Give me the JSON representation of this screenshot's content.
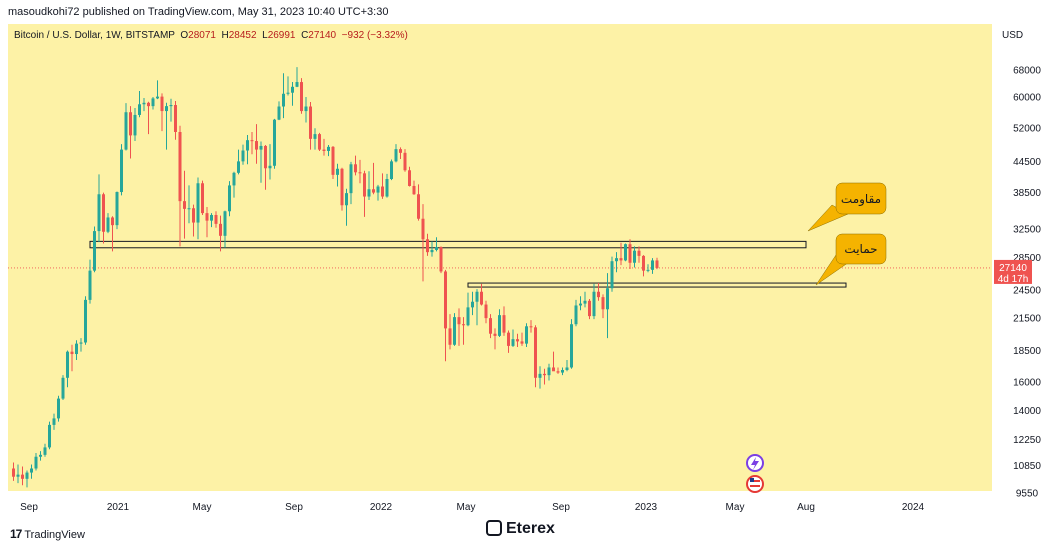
{
  "publish_line": "masoudkohi72 published on TradingView.com, May 31, 2023 10:40 UTC+3:30",
  "symbol": {
    "name": "Bitcoin / U.S. Dollar, 1W, BITSTAMP",
    "open_label": "O",
    "open": "28071",
    "high_label": "H",
    "high": "28452",
    "low_label": "L",
    "low": "26991",
    "close_label": "C",
    "close": "27140",
    "change": "−932 (−3.32%)"
  },
  "currency": "USD",
  "price_tag": {
    "value": "27140",
    "countdown": "4d 17h"
  },
  "annotations": {
    "resistance": "مقاومت",
    "support": "حمایت"
  },
  "footer": {
    "tradingview": "TradingView",
    "brand": "Eterex"
  },
  "colors": {
    "up": "#26a69a",
    "down": "#ef5350",
    "background": "#fdf2a6",
    "accent": "#f5b300"
  },
  "icons": [
    "tradingview-logo-icon",
    "eterex-logo-icon",
    "lightning-event-icon",
    "us-flag-event-icon"
  ],
  "chart_data": {
    "type": "candlestick",
    "timeframe": "1W",
    "scale": "log",
    "title": "Bitcoin / U.S. Dollar, 1W, BITSTAMP",
    "y_ticks": [
      68000,
      60000,
      52000,
      44500,
      38500,
      32500,
      28500,
      24500,
      21500,
      18500,
      16000,
      14000,
      12250,
      10850,
      9550
    ],
    "x_ticks": [
      "Sep",
      "2021",
      "May",
      "Sep",
      "2022",
      "May",
      "Sep",
      "2023",
      "May",
      "Aug",
      "2024"
    ],
    "ylim": [
      9550,
      80000
    ],
    "zones": [
      {
        "label": "مقاومت",
        "low": 29800,
        "high": 30700
      },
      {
        "label": "حمایت",
        "low": 24900,
        "high": 25300
      }
    ],
    "last_close": 27140,
    "series": [
      {
        "values": [
          [
            10700,
            11000,
            10100,
            10300
          ],
          [
            10300,
            10900,
            10000,
            10400
          ],
          [
            10400,
            10800,
            9900,
            10200
          ],
          [
            10200,
            10600,
            9800,
            10500
          ],
          [
            10500,
            10900,
            10200,
            10700
          ],
          [
            10700,
            11500,
            10600,
            11300
          ],
          [
            11300,
            11600,
            11100,
            11400
          ],
          [
            11400,
            12000,
            11300,
            11800
          ],
          [
            11800,
            13300,
            11700,
            13100
          ],
          [
            13100,
            13800,
            12800,
            13500
          ],
          [
            13500,
            15000,
            13300,
            14800
          ],
          [
            14800,
            16500,
            14700,
            16300
          ],
          [
            16300,
            18500,
            15600,
            18400
          ],
          [
            18400,
            19000,
            16800,
            18200
          ],
          [
            18200,
            19400,
            17700,
            19100
          ],
          [
            19100,
            19600,
            18400,
            19200
          ],
          [
            19200,
            23800,
            19000,
            23400
          ],
          [
            23400,
            28200,
            23000,
            26800
          ],
          [
            26800,
            32900,
            26600,
            32200
          ],
          [
            32200,
            41900,
            30600,
            38200
          ],
          [
            38200,
            38500,
            30400,
            32100
          ],
          [
            32100,
            35000,
            31900,
            34300
          ],
          [
            34300,
            34500,
            29300,
            33100
          ],
          [
            33100,
            38700,
            32500,
            38600
          ],
          [
            38600,
            48200,
            38000,
            47000
          ],
          [
            47000,
            58300,
            46800,
            55900
          ],
          [
            55900,
            57500,
            45100,
            50200
          ],
          [
            50200,
            57000,
            48900,
            55200
          ],
          [
            55200,
            61700,
            54600,
            58000
          ],
          [
            58000,
            59700,
            56200,
            58400
          ],
          [
            58400,
            58700,
            50500,
            57500
          ],
          [
            57500,
            60000,
            56600,
            59600
          ],
          [
            59600,
            64800,
            59400,
            60100
          ],
          [
            60100,
            61000,
            51200,
            56200
          ],
          [
            56200,
            58400,
            47000,
            57500
          ],
          [
            57500,
            59500,
            53500,
            57800
          ],
          [
            57800,
            58900,
            49200,
            51000
          ],
          [
            51000,
            52500,
            30000,
            37000
          ],
          [
            37000,
            42600,
            31100,
            35700
          ],
          [
            35700,
            39800,
            33400,
            35800
          ],
          [
            35800,
            36400,
            31400,
            33500
          ],
          [
            33500,
            41300,
            31000,
            40200
          ],
          [
            40200,
            40700,
            34700,
            35000
          ],
          [
            35000,
            36000,
            31300,
            33800
          ],
          [
            33800,
            35000,
            32800,
            34700
          ],
          [
            34700,
            35300,
            32700,
            33300
          ],
          [
            33300,
            34600,
            29300,
            31500
          ],
          [
            31500,
            35400,
            29800,
            35300
          ],
          [
            35300,
            40600,
            34500,
            39800
          ],
          [
            39800,
            42400,
            37600,
            42200
          ],
          [
            42200,
            47000,
            41900,
            44500
          ],
          [
            44500,
            48100,
            43800,
            46800
          ],
          [
            46800,
            50300,
            43900,
            49100
          ],
          [
            49100,
            51000,
            46000,
            48900
          ],
          [
            48900,
            52900,
            44000,
            47000
          ],
          [
            47000,
            48800,
            40300,
            47800
          ],
          [
            47800,
            48000,
            39000,
            43100
          ],
          [
            43100,
            48200,
            40900,
            43600
          ],
          [
            43600,
            54200,
            43000,
            54000
          ],
          [
            54000,
            58800,
            53900,
            57400
          ],
          [
            57400,
            67000,
            54400,
            60900
          ],
          [
            60900,
            66000,
            60400,
            61200
          ],
          [
            61200,
            64300,
            57600,
            62900
          ],
          [
            62900,
            68900,
            62800,
            64300
          ],
          [
            64300,
            65500,
            55500,
            56200
          ],
          [
            56200,
            60000,
            53300,
            57400
          ],
          [
            57400,
            58600,
            47000,
            49400
          ],
          [
            49400,
            51900,
            47000,
            50500
          ],
          [
            50500,
            50800,
            46700,
            47000
          ],
          [
            47000,
            49400,
            45700,
            46700
          ],
          [
            46700,
            48000,
            45600,
            47600
          ],
          [
            47600,
            47800,
            41000,
            41800
          ],
          [
            41800,
            44000,
            39600,
            43000
          ],
          [
            43000,
            43200,
            35400,
            36300
          ],
          [
            36300,
            39200,
            33000,
            38400
          ],
          [
            38400,
            44400,
            36500,
            43900
          ],
          [
            43900,
            45700,
            41700,
            42300
          ],
          [
            42300,
            44800,
            40200,
            42100
          ],
          [
            42100,
            42600,
            34400,
            37800
          ],
          [
            37800,
            42500,
            37200,
            39100
          ],
          [
            39100,
            44200,
            38200,
            38500
          ],
          [
            38500,
            39900,
            37100,
            39600
          ],
          [
            39600,
            42100,
            37400,
            37800
          ],
          [
            37800,
            42000,
            37600,
            41000
          ],
          [
            41000,
            44900,
            40800,
            44500
          ],
          [
            44500,
            48200,
            44300,
            47100
          ],
          [
            47100,
            47500,
            45000,
            46300
          ],
          [
            46300,
            47100,
            42400,
            42700
          ],
          [
            42700,
            43400,
            39600,
            39700
          ],
          [
            39700,
            40700,
            38100,
            38200
          ],
          [
            38200,
            40000,
            33800,
            34100
          ],
          [
            34100,
            36500,
            25500,
            31000
          ],
          [
            31000,
            31800,
            28700,
            29200
          ],
          [
            29200,
            30700,
            28600,
            29500
          ],
          [
            29500,
            31300,
            29300,
            29900
          ],
          [
            29900,
            30000,
            26500,
            26700
          ],
          [
            26700,
            26900,
            17600,
            20500
          ],
          [
            20500,
            21900,
            18600,
            19000
          ],
          [
            19000,
            22000,
            18900,
            21600
          ],
          [
            21600,
            22500,
            18900,
            20900
          ],
          [
            20900,
            21600,
            19000,
            20800
          ],
          [
            20800,
            24200,
            20700,
            22600
          ],
          [
            22600,
            24300,
            21800,
            23200
          ],
          [
            23200,
            24600,
            20800,
            24300
          ],
          [
            24300,
            25200,
            22800,
            22900
          ],
          [
            22900,
            23300,
            21000,
            21500
          ],
          [
            21500,
            21900,
            19600,
            20000
          ],
          [
            20000,
            20500,
            18600,
            19800
          ],
          [
            19800,
            22400,
            19700,
            21800
          ],
          [
            21800,
            22700,
            19800,
            20100
          ],
          [
            20100,
            20300,
            18300,
            18900
          ],
          [
            18900,
            20400,
            18800,
            19500
          ],
          [
            19500,
            20000,
            18800,
            19300
          ],
          [
            19300,
            20100,
            18900,
            19100
          ],
          [
            19100,
            21000,
            18800,
            20700
          ],
          [
            20700,
            21300,
            20100,
            20600
          ],
          [
            20600,
            20800,
            15600,
            16300
          ],
          [
            16300,
            17200,
            15500,
            16600
          ],
          [
            16600,
            17000,
            15800,
            16500
          ],
          [
            16500,
            17400,
            16100,
            17100
          ],
          [
            17100,
            18400,
            16900,
            16800
          ],
          [
            16800,
            17100,
            16600,
            16700
          ],
          [
            16700,
            17100,
            16500,
            16900
          ],
          [
            16900,
            17700,
            16800,
            17100
          ],
          [
            17100,
            21400,
            17000,
            20900
          ],
          [
            20900,
            23400,
            20700,
            22800
          ],
          [
            22800,
            23800,
            22300,
            23000
          ],
          [
            23000,
            24300,
            22600,
            23300
          ],
          [
            23300,
            23500,
            21400,
            21700
          ],
          [
            21700,
            25200,
            21400,
            24300
          ],
          [
            24300,
            25300,
            23300,
            23700
          ],
          [
            23700,
            24000,
            21500,
            22400
          ],
          [
            22400,
            26500,
            19600,
            24700
          ],
          [
            24700,
            28600,
            24300,
            28000
          ],
          [
            28000,
            29200,
            26600,
            28400
          ],
          [
            28400,
            30500,
            27500,
            28100
          ],
          [
            28100,
            30400,
            28000,
            30300
          ],
          [
            30300,
            31000,
            27000,
            27800
          ],
          [
            27800,
            30000,
            27200,
            29400
          ],
          [
            29400,
            30000,
            27800,
            28700
          ],
          [
            28700,
            28800,
            26100,
            26800
          ],
          [
            26800,
            27600,
            26600,
            26900
          ],
          [
            26900,
            28400,
            26400,
            28100
          ],
          [
            28100,
            28452,
            26991,
            27140
          ]
        ]
      }
    ]
  }
}
